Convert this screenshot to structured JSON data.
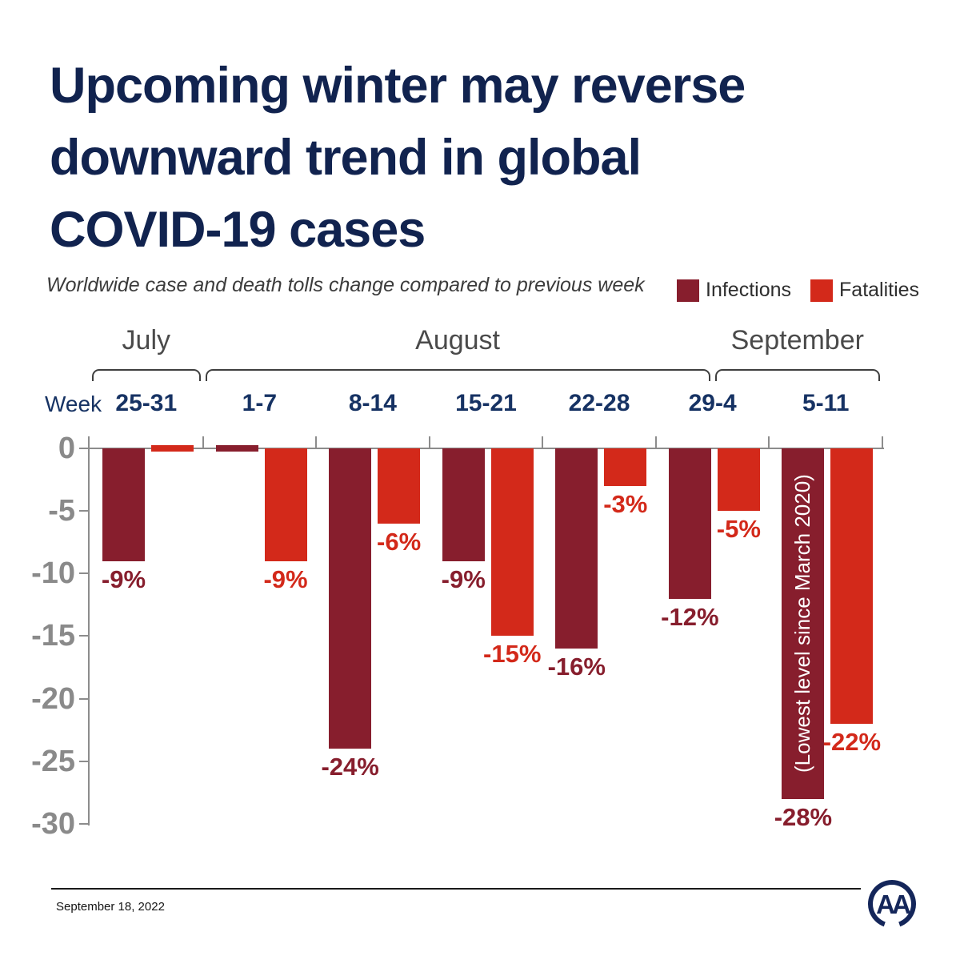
{
  "title_lines": [
    "Upcoming winter may reverse",
    "downward trend in global",
    "COVID-19 cases"
  ],
  "subtitle": "Worldwide case and death tolls change compared to previous week",
  "week_label": "Week",
  "legend": {
    "infections": "Infections",
    "fatalities": "Fatalities"
  },
  "footer": {
    "date": "September 18, 2022",
    "logo": "AA"
  },
  "colors": {
    "title_navy": "#11234F",
    "week_navy": "#163263",
    "infections": "#871E2D",
    "fatalities": "#D3291A",
    "axis_gray": "#8C8C8C",
    "month_gray": "#4A4A4A",
    "bracket_gray": "#3F3F3F"
  },
  "chart_data": {
    "type": "bar",
    "title": "Upcoming winter may reverse downward trend in global COVID-19 cases",
    "subtitle": "Worldwide case and death tolls change compared to previous week",
    "categories": [
      "25-31",
      "1-7",
      "8-14",
      "15-21",
      "22-28",
      "29-4",
      "5-11"
    ],
    "months": [
      {
        "label": "July",
        "from": 0,
        "to": 1
      },
      {
        "label": "August",
        "from": 1,
        "to": 5.5
      },
      {
        "label": "September",
        "from": 5.5,
        "to": 7
      }
    ],
    "series": [
      {
        "name": "Infections",
        "color": "#871E2D",
        "values": [
          -9,
          0,
          -24,
          -9,
          -16,
          -12,
          -28
        ],
        "labels": [
          "-9%",
          "",
          "-24%",
          "-9%",
          "-16%",
          "-12%",
          "-28%"
        ]
      },
      {
        "name": "Fatalities",
        "color": "#D3291A",
        "values": [
          0,
          -9,
          -6,
          -15,
          -3,
          -5,
          -22
        ],
        "labels": [
          "",
          "-9%",
          "-6%",
          "-15%",
          "-3%",
          "-5%",
          "-22%"
        ]
      }
    ],
    "annotation": {
      "text": "(Lowest level since March 2020)",
      "series_index": 0,
      "category_index": 6
    },
    "ylabel_ticks": [
      "0",
      "-5",
      "-10",
      "-15",
      "-20",
      "-25",
      "-30"
    ],
    "ylim": [
      -30,
      0
    ],
    "grid": false,
    "legend_position": "top-right"
  }
}
